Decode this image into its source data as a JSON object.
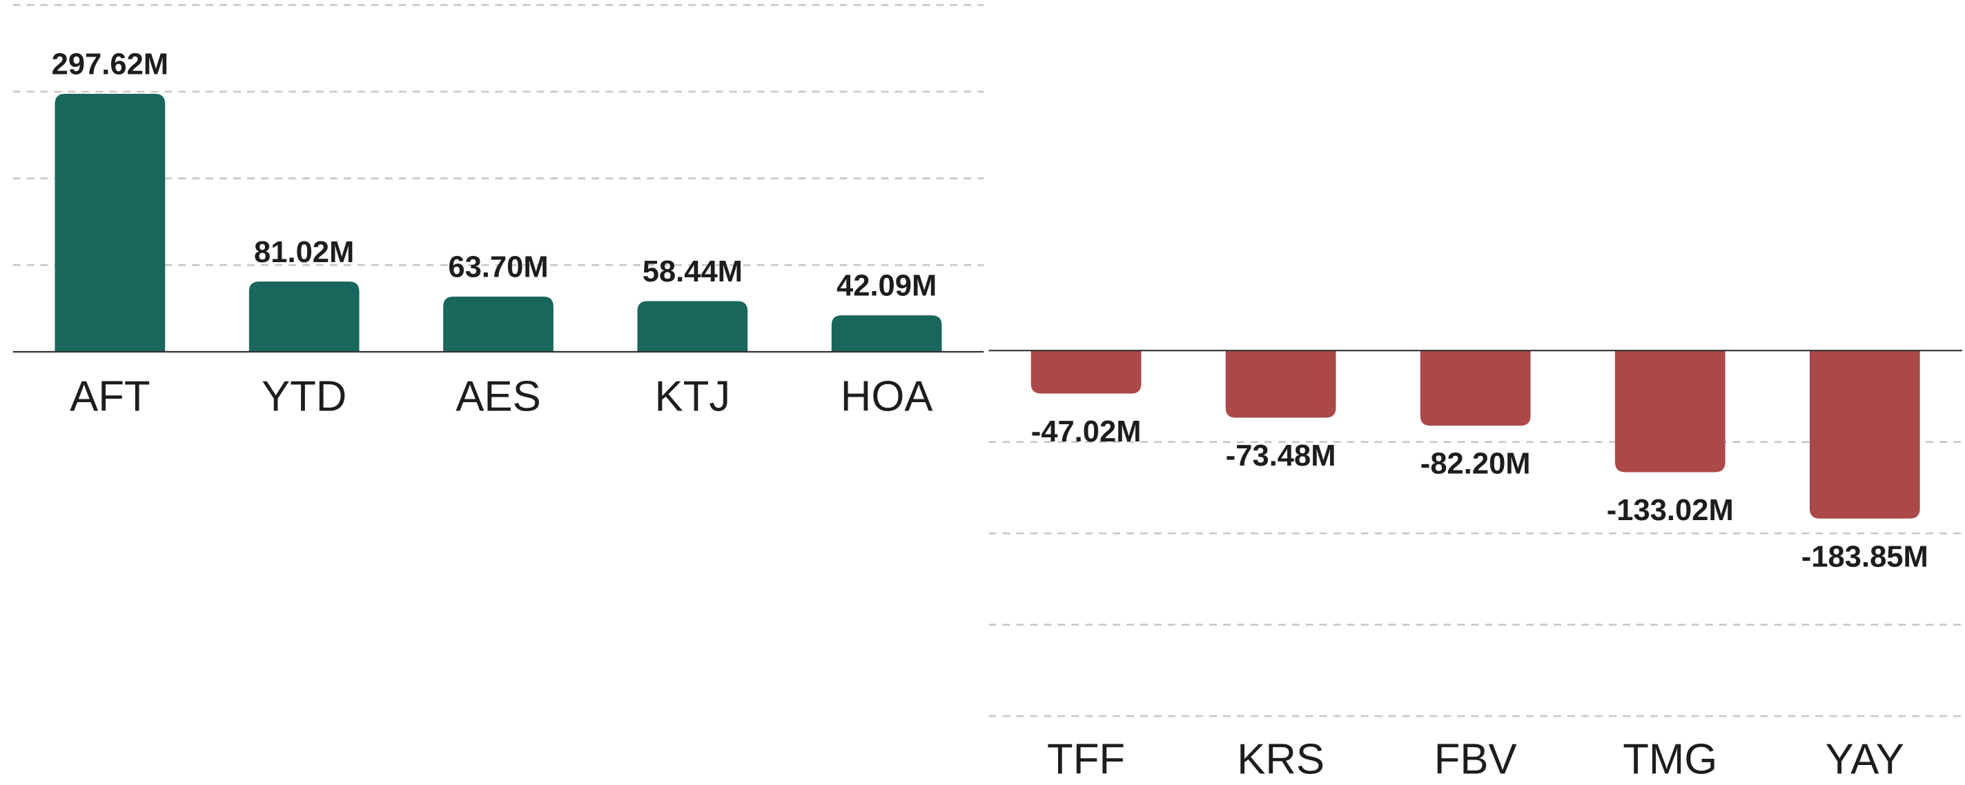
{
  "chart_data": [
    {
      "type": "bar",
      "categories": [
        "AFT",
        "YTD",
        "AES",
        "KTJ",
        "HOA"
      ],
      "values": [
        297.62,
        81.02,
        63.7,
        58.44,
        42.09
      ],
      "value_labels": [
        "297.62M",
        "81.02M",
        "63.70M",
        "58.44M",
        "42.09M"
      ],
      "color": "#19675c",
      "ylim": [
        0,
        400
      ],
      "yticks": [
        0,
        100,
        200,
        300,
        400
      ],
      "grid": true
    },
    {
      "type": "bar",
      "categories": [
        "TFF",
        "KRS",
        "FBV",
        "TMG",
        "YAY"
      ],
      "values": [
        -47.02,
        -73.48,
        -82.2,
        -133.02,
        -183.85
      ],
      "value_labels": [
        "-47.02M",
        "-73.48M",
        "-82.20M",
        "-133.02M",
        "-183.85M"
      ],
      "color": "#ab4849",
      "ylim": [
        -400,
        0
      ],
      "yticks": [
        0,
        -100,
        -200,
        -300,
        -400
      ],
      "grid": true
    }
  ]
}
